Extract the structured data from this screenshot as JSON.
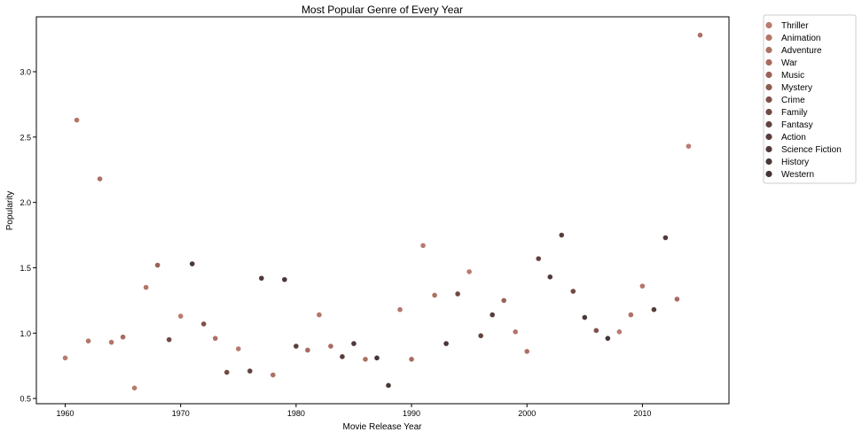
{
  "chart_data": {
    "type": "scatter",
    "title": "Most Popular Genre of Every Year",
    "xlabel": "Movie Release Year",
    "ylabel": "Popularity",
    "xlim": [
      1957.5,
      2017.5
    ],
    "ylim": [
      0.46,
      3.42
    ],
    "xticks": [
      {
        "value": 1960,
        "label": "1960"
      },
      {
        "value": 1970,
        "label": "1970"
      },
      {
        "value": 1980,
        "label": "1980"
      },
      {
        "value": 1990,
        "label": "1990"
      },
      {
        "value": 2000,
        "label": "2000"
      },
      {
        "value": 2010,
        "label": "2010"
      }
    ],
    "yticks": [
      {
        "value": 0.5,
        "label": "0.5"
      },
      {
        "value": 1.0,
        "label": "1.0"
      },
      {
        "value": 1.5,
        "label": "1.5"
      },
      {
        "value": 2.0,
        "label": "2.0"
      },
      {
        "value": 2.5,
        "label": "2.5"
      },
      {
        "value": 3.0,
        "label": "3.0"
      }
    ],
    "grid": false,
    "legend_position": "outside-top-right",
    "series": [
      {
        "name": "Thriller",
        "color": "#b97a6f"
      },
      {
        "name": "Animation",
        "color": "#b57469"
      },
      {
        "name": "Adventure",
        "color": "#ad7064"
      },
      {
        "name": "War",
        "color": "#a76b60"
      },
      {
        "name": "Music",
        "color": "#9a6257"
      },
      {
        "name": "Mystery",
        "color": "#8e5a51"
      },
      {
        "name": "Crime",
        "color": "#7f5049"
      },
      {
        "name": "Family",
        "color": "#704943"
      },
      {
        "name": "Fantasy",
        "color": "#63433f"
      },
      {
        "name": "Action",
        "color": "#563d3b"
      },
      {
        "name": "Science Fiction",
        "color": "#4f3a39"
      },
      {
        "name": "History",
        "color": "#4a3736"
      },
      {
        "name": "Western",
        "color": "#453434"
      }
    ],
    "points": [
      {
        "x": 1960,
        "y": 0.81,
        "color": "#b97a6f"
      },
      {
        "x": 1961,
        "y": 2.63,
        "color": "#b57469"
      },
      {
        "x": 1962,
        "y": 0.94,
        "color": "#b57469"
      },
      {
        "x": 1963,
        "y": 2.18,
        "color": "#ad7064"
      },
      {
        "x": 1964,
        "y": 0.93,
        "color": "#b57469"
      },
      {
        "x": 1965,
        "y": 0.97,
        "color": "#a76b60"
      },
      {
        "x": 1966,
        "y": 0.58,
        "color": "#b97a6f"
      },
      {
        "x": 1967,
        "y": 1.35,
        "color": "#b57469"
      },
      {
        "x": 1968,
        "y": 1.52,
        "color": "#9a6257"
      },
      {
        "x": 1969,
        "y": 0.95,
        "color": "#704943"
      },
      {
        "x": 1970,
        "y": 1.13,
        "color": "#b97a6f"
      },
      {
        "x": 1971,
        "y": 1.53,
        "color": "#4a3736"
      },
      {
        "x": 1972,
        "y": 1.07,
        "color": "#7f5049"
      },
      {
        "x": 1973,
        "y": 0.96,
        "color": "#ad7064"
      },
      {
        "x": 1974,
        "y": 0.7,
        "color": "#704943"
      },
      {
        "x": 1975,
        "y": 0.88,
        "color": "#b97a6f"
      },
      {
        "x": 1976,
        "y": 0.71,
        "color": "#63433f"
      },
      {
        "x": 1977,
        "y": 1.42,
        "color": "#4f3a39"
      },
      {
        "x": 1978,
        "y": 0.68,
        "color": "#ad7064"
      },
      {
        "x": 1979,
        "y": 1.41,
        "color": "#4a3736"
      },
      {
        "x": 1980,
        "y": 0.9,
        "color": "#563d3b"
      },
      {
        "x": 1981,
        "y": 0.87,
        "color": "#a76b60"
      },
      {
        "x": 1982,
        "y": 1.14,
        "color": "#b57469"
      },
      {
        "x": 1983,
        "y": 0.9,
        "color": "#a76b60"
      },
      {
        "x": 1984,
        "y": 0.82,
        "color": "#563d3b"
      },
      {
        "x": 1985,
        "y": 0.92,
        "color": "#4f3a39"
      },
      {
        "x": 1986,
        "y": 0.8,
        "color": "#ad7064"
      },
      {
        "x": 1987,
        "y": 0.81,
        "color": "#453434"
      },
      {
        "x": 1988,
        "y": 0.6,
        "color": "#4a3736"
      },
      {
        "x": 1989,
        "y": 1.18,
        "color": "#b57469"
      },
      {
        "x": 1990,
        "y": 0.8,
        "color": "#a76b60"
      },
      {
        "x": 1991,
        "y": 1.67,
        "color": "#b97a6f"
      },
      {
        "x": 1992,
        "y": 1.29,
        "color": "#ad7064"
      },
      {
        "x": 1993,
        "y": 0.92,
        "color": "#4a3736"
      },
      {
        "x": 1994,
        "y": 1.3,
        "color": "#704943"
      },
      {
        "x": 1995,
        "y": 1.47,
        "color": "#b97a6f"
      },
      {
        "x": 1996,
        "y": 0.98,
        "color": "#63433f"
      },
      {
        "x": 1997,
        "y": 1.14,
        "color": "#563d3b"
      },
      {
        "x": 1998,
        "y": 1.25,
        "color": "#9a6257"
      },
      {
        "x": 1999,
        "y": 1.01,
        "color": "#b57469"
      },
      {
        "x": 2000,
        "y": 0.86,
        "color": "#ad7064"
      },
      {
        "x": 2001,
        "y": 1.57,
        "color": "#63433f"
      },
      {
        "x": 2002,
        "y": 1.43,
        "color": "#4f3a39"
      },
      {
        "x": 2003,
        "y": 1.75,
        "color": "#563d3b"
      },
      {
        "x": 2004,
        "y": 1.32,
        "color": "#704943"
      },
      {
        "x": 2005,
        "y": 1.12,
        "color": "#4a3736"
      },
      {
        "x": 2006,
        "y": 1.02,
        "color": "#7f5049"
      },
      {
        "x": 2007,
        "y": 0.96,
        "color": "#453434"
      },
      {
        "x": 2008,
        "y": 1.01,
        "color": "#b97a6f"
      },
      {
        "x": 2009,
        "y": 1.14,
        "color": "#ad7064"
      },
      {
        "x": 2010,
        "y": 1.36,
        "color": "#b57469"
      },
      {
        "x": 2011,
        "y": 1.18,
        "color": "#563d3b"
      },
      {
        "x": 2012,
        "y": 1.73,
        "color": "#4f3a39"
      },
      {
        "x": 2013,
        "y": 1.26,
        "color": "#a76b60"
      },
      {
        "x": 2014,
        "y": 2.43,
        "color": "#b97a6f"
      },
      {
        "x": 2015,
        "y": 3.28,
        "color": "#ad7064"
      }
    ]
  }
}
